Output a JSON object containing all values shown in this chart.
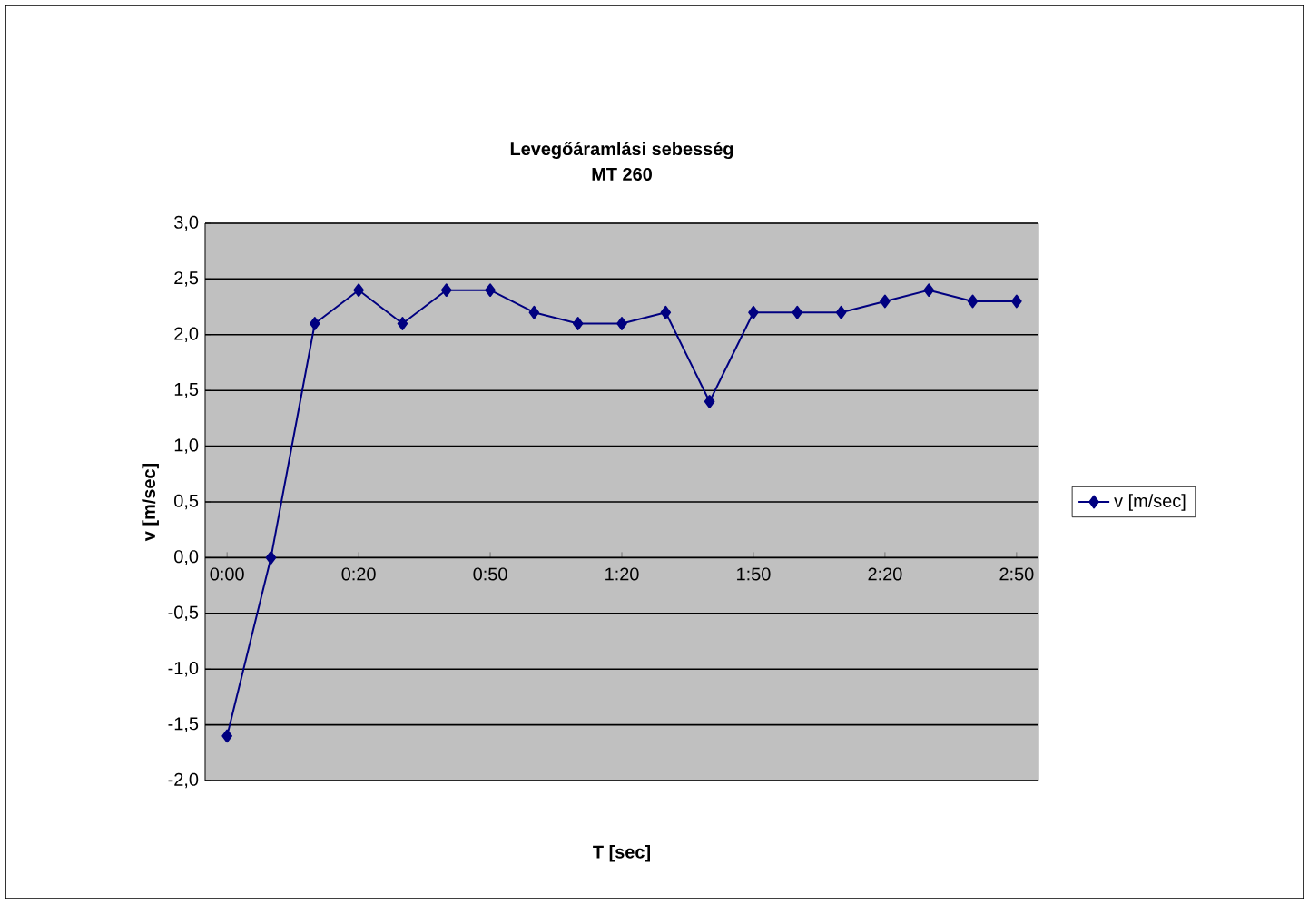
{
  "chart_data": {
    "type": "line",
    "title": "Levegőáramlási sebesség",
    "subtitle": "MT 260",
    "xlabel": "T [sec]",
    "ylabel": "v [m/sec]",
    "categories": [
      "0:00",
      null,
      null,
      "0:20",
      null,
      null,
      "0:50",
      null,
      null,
      "1:20",
      null,
      null,
      "1:50",
      null,
      null,
      "2:20",
      null,
      null,
      "2:50"
    ],
    "series": [
      {
        "name": "v [m/sec]",
        "color": "#000080",
        "values": [
          -1.6,
          0.0,
          2.1,
          2.4,
          2.1,
          2.4,
          2.4,
          2.2,
          2.1,
          2.1,
          2.2,
          1.4,
          2.2,
          2.2,
          2.2,
          2.3,
          2.4,
          2.3,
          2.3
        ]
      }
    ],
    "ylim": [
      -2,
      3
    ],
    "yticks": [
      {
        "value": -2,
        "label": "-2,0"
      },
      {
        "value": -1.5,
        "label": "-1,5"
      },
      {
        "value": -1,
        "label": "-1,0"
      },
      {
        "value": -0.5,
        "label": "-0,5"
      },
      {
        "value": 0,
        "label": "0,0"
      },
      {
        "value": 0.5,
        "label": "0,5"
      },
      {
        "value": 1,
        "label": "1,0"
      },
      {
        "value": 1.5,
        "label": "1,5"
      },
      {
        "value": 2,
        "label": "2,0"
      },
      {
        "value": 2.5,
        "label": "2,5"
      },
      {
        "value": 3,
        "label": "3,0"
      }
    ],
    "grid": "y",
    "legend": "right",
    "marker": "diamond",
    "line_style": "solid"
  }
}
